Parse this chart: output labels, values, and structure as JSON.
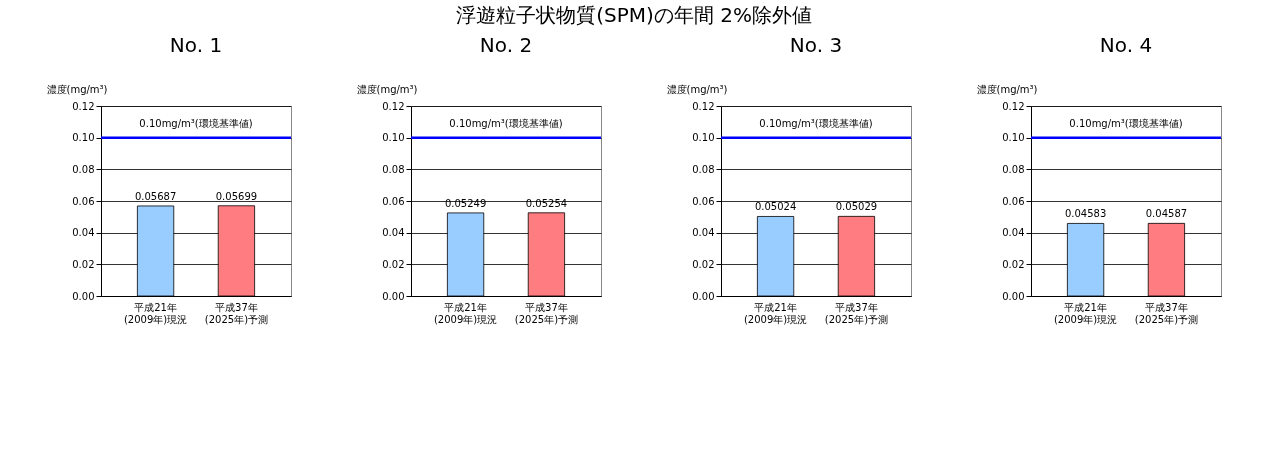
{
  "chart_data": [
    {
      "type": "bar",
      "title": "No. 1",
      "annotations": [
        "浮遊粒子状物質(SPM)の年間 2%除外値"
      ],
      "ylabel": "濃度(mg/m³)",
      "categories": [
        "平成21年\n(2009年)現況",
        "平成37年\n(2025年)予測"
      ],
      "values": [
        0.05687,
        0.05699
      ],
      "colors": [
        "#99ccff",
        "#ff7c80"
      ],
      "data_labels": true,
      "ylim": [
        0,
        0.12
      ],
      "yticks": [
        {
          "value": 0,
          "label": "0.00"
        },
        {
          "value": 0.02,
          "label": "0.02"
        },
        {
          "value": 0.04,
          "label": "0.04"
        },
        {
          "value": 0.06,
          "label": "0.06"
        },
        {
          "value": 0.08,
          "label": "0.08"
        },
        {
          "value": 0.1,
          "label": "0.10"
        },
        {
          "value": 0.12,
          "label": "0.12"
        }
      ],
      "grid": "y",
      "ref_lines": [
        {
          "axis": "y",
          "value": 0.1,
          "label": "0.10mg/m³(環境基準値)",
          "color": "#0000ff"
        }
      ]
    },
    {
      "type": "bar",
      "title": "No. 2",
      "ylabel": "濃度(mg/m³)",
      "categories": [
        "平成21年\n(2009年)現況",
        "平成37年\n(2025年)予測"
      ],
      "values": [
        0.05249,
        0.05254
      ],
      "colors": [
        "#99ccff",
        "#ff7c80"
      ],
      "data_labels": true,
      "ylim": [
        0,
        0.12
      ],
      "yticks": [
        {
          "value": 0,
          "label": "0.00"
        },
        {
          "value": 0.02,
          "label": "0.02"
        },
        {
          "value": 0.04,
          "label": "0.04"
        },
        {
          "value": 0.06,
          "label": "0.06"
        },
        {
          "value": 0.08,
          "label": "0.08"
        },
        {
          "value": 0.1,
          "label": "0.10"
        },
        {
          "value": 0.12,
          "label": "0.12"
        }
      ],
      "grid": "y",
      "ref_lines": [
        {
          "axis": "y",
          "value": 0.1,
          "label": "0.10mg/m³(環境基準値)",
          "color": "#0000ff"
        }
      ]
    },
    {
      "type": "bar",
      "title": "No. 3",
      "ylabel": "濃度(mg/m³)",
      "categories": [
        "平成21年\n(2009年)現況",
        "平成37年\n(2025年)予測"
      ],
      "values": [
        0.05024,
        0.05029
      ],
      "colors": [
        "#99ccff",
        "#ff7c80"
      ],
      "data_labels": true,
      "ylim": [
        0,
        0.12
      ],
      "yticks": [
        {
          "value": 0,
          "label": "0.00"
        },
        {
          "value": 0.02,
          "label": "0.02"
        },
        {
          "value": 0.04,
          "label": "0.04"
        },
        {
          "value": 0.06,
          "label": "0.06"
        },
        {
          "value": 0.08,
          "label": "0.08"
        },
        {
          "value": 0.1,
          "label": "0.10"
        },
        {
          "value": 0.12,
          "label": "0.12"
        }
      ],
      "grid": "y",
      "ref_lines": [
        {
          "axis": "y",
          "value": 0.1,
          "label": "0.10mg/m³(環境基準値)",
          "color": "#0000ff"
        }
      ]
    },
    {
      "type": "bar",
      "title": "No. 4",
      "ylabel": "濃度(mg/m³)",
      "categories": [
        "平成21年\n(2009年)現況",
        "平成37年\n(2025年)予測"
      ],
      "values": [
        0.04583,
        0.04587
      ],
      "colors": [
        "#99ccff",
        "#ff7c80"
      ],
      "data_labels": true,
      "ylim": [
        0,
        0.12
      ],
      "yticks": [
        {
          "value": 0,
          "label": "0.00"
        },
        {
          "value": 0.02,
          "label": "0.02"
        },
        {
          "value": 0.04,
          "label": "0.04"
        },
        {
          "value": 0.06,
          "label": "0.06"
        },
        {
          "value": 0.08,
          "label": "0.08"
        },
        {
          "value": 0.1,
          "label": "0.10"
        },
        {
          "value": 0.12,
          "label": "0.12"
        }
      ],
      "grid": "y",
      "ref_lines": [
        {
          "axis": "y",
          "value": 0.1,
          "label": "0.10mg/m³(環境基準値)",
          "color": "#0000ff"
        }
      ]
    }
  ]
}
